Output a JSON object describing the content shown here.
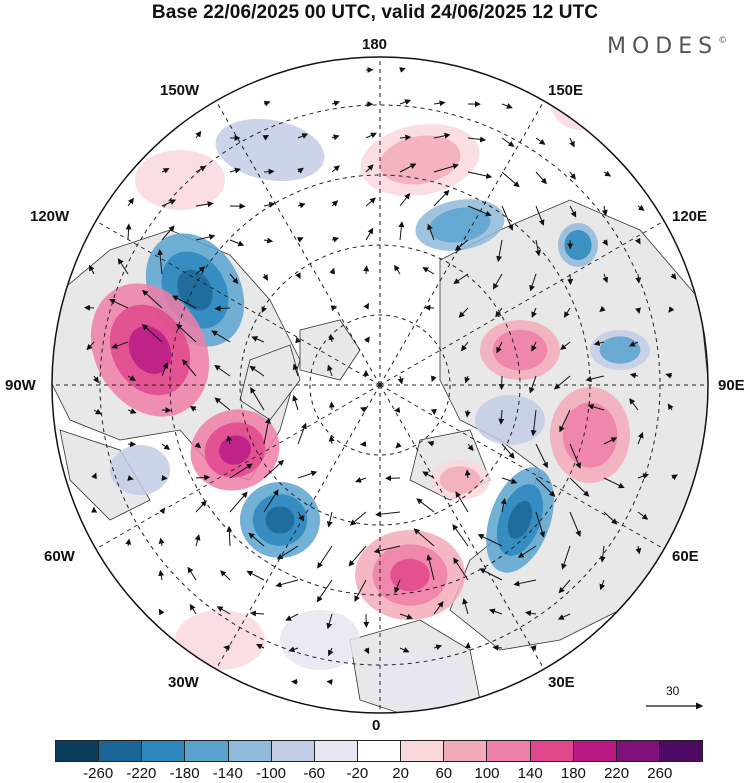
{
  "title": "Base 22/06/2025 00 UTC, valid 24/06/2025 12 UTC",
  "brand": {
    "name": "MODES",
    "mark": "©"
  },
  "map_labels": {
    "lon_180": "180",
    "lon_150w": "150W",
    "lon_150e": "150E",
    "lon_120w": "120W",
    "lon_120e": "120E",
    "lon_90w": "90W",
    "lon_90e": "90E",
    "lon_60w": "60W",
    "lon_60e": "60E",
    "lon_30w": "30W",
    "lon_30e": "30E",
    "lon_0": "0"
  },
  "reference_vector": {
    "value": "30"
  },
  "colorbar": {
    "colors": [
      "#0b3d5c",
      "#1b6697",
      "#2c87bd",
      "#5aa3cf",
      "#8fbadb",
      "#c3cde6",
      "#e7e6f2",
      "#ffffff",
      "#f9d8dc",
      "#f3aab8",
      "#ee7fa8",
      "#e0488d",
      "#b81b86",
      "#80107b",
      "#4d0a63"
    ],
    "ticks": [
      "-260",
      "-220",
      "-180",
      "-140",
      "-100",
      "-60",
      "-20",
      "20",
      "60",
      "100",
      "140",
      "180",
      "220",
      "260"
    ]
  },
  "colors": {
    "background": "#ffffff",
    "land": "#e8e8e8",
    "coast": "#333333",
    "grid": "#222222"
  }
}
